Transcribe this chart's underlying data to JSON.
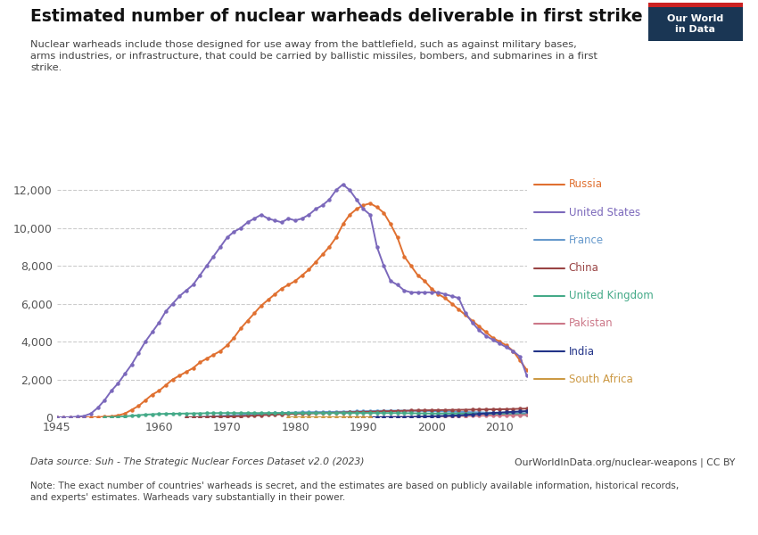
{
  "title": "Estimated number of nuclear warheads deliverable in first strike",
  "subtitle": "Nuclear warheads include those designed for use away from the battlefield, such as against military bases,\narms industries, or infrastructure, that could be carried by ballistic missiles, bombers, and submarines in a first\nstrike.",
  "datasource": "Data source: Suh - The Strategic Nuclear Forces Dataset v2.0 (2023)",
  "url": "OurWorldInData.org/nuclear-weapons | CC BY",
  "note": "Note: The exact number of countries' warheads is secret, and the estimates are based on publicly available information, historical records,\nand experts' estimates. Warheads vary substantially in their power.",
  "background_color": "#ffffff",
  "plot_bg_color": "#ffffff",
  "grid_color": "#cccccc",
  "series": {
    "Russia": {
      "color": "#e07030",
      "data": {
        "1945": 0,
        "1946": 0,
        "1947": 0,
        "1948": 0,
        "1949": 0,
        "1950": 5,
        "1951": 10,
        "1952": 30,
        "1953": 50,
        "1954": 100,
        "1955": 200,
        "1956": 400,
        "1957": 600,
        "1958": 900,
        "1959": 1200,
        "1960": 1400,
        "1961": 1700,
        "1962": 2000,
        "1963": 2200,
        "1964": 2400,
        "1965": 2600,
        "1966": 2900,
        "1967": 3100,
        "1968": 3300,
        "1969": 3500,
        "1970": 3800,
        "1971": 4200,
        "1972": 4700,
        "1973": 5100,
        "1974": 5500,
        "1975": 5900,
        "1976": 6200,
        "1977": 6500,
        "1978": 6800,
        "1979": 7000,
        "1980": 7200,
        "1981": 7500,
        "1982": 7800,
        "1983": 8200,
        "1984": 8600,
        "1985": 9000,
        "1986": 9500,
        "1987": 10200,
        "1988": 10700,
        "1989": 11000,
        "1990": 11200,
        "1991": 11300,
        "1992": 11100,
        "1993": 10800,
        "1994": 10200,
        "1995": 9500,
        "1996": 8500,
        "1997": 8000,
        "1998": 7500,
        "1999": 7200,
        "2000": 6800,
        "2001": 6500,
        "2002": 6300,
        "2003": 6000,
        "2004": 5700,
        "2005": 5400,
        "2006": 5100,
        "2007": 4800,
        "2008": 4500,
        "2009": 4200,
        "2010": 4000,
        "2011": 3800,
        "2012": 3500,
        "2013": 3000,
        "2014": 2500
      }
    },
    "United States": {
      "color": "#7b68bb",
      "data": {
        "1945": 0,
        "1946": 2,
        "1947": 10,
        "1948": 30,
        "1949": 70,
        "1950": 200,
        "1951": 500,
        "1952": 900,
        "1953": 1400,
        "1954": 1800,
        "1955": 2300,
        "1956": 2800,
        "1957": 3400,
        "1958": 4000,
        "1959": 4500,
        "1960": 5000,
        "1961": 5600,
        "1962": 6000,
        "1963": 6400,
        "1964": 6700,
        "1965": 7000,
        "1966": 7500,
        "1967": 8000,
        "1968": 8500,
        "1969": 9000,
        "1970": 9500,
        "1971": 9800,
        "1972": 10000,
        "1973": 10300,
        "1974": 10500,
        "1975": 10700,
        "1976": 10500,
        "1977": 10400,
        "1978": 10300,
        "1979": 10500,
        "1980": 10400,
        "1981": 10500,
        "1982": 10700,
        "1983": 11000,
        "1984": 11200,
        "1985": 11500,
        "1986": 12000,
        "1987": 12300,
        "1988": 12000,
        "1989": 11500,
        "1990": 11000,
        "1991": 10700,
        "1992": 9000,
        "1993": 8000,
        "1994": 7200,
        "1995": 7000,
        "1996": 6700,
        "1997": 6600,
        "1998": 6600,
        "1999": 6600,
        "2000": 6600,
        "2001": 6600,
        "2002": 6500,
        "2003": 6400,
        "2004": 6300,
        "2005": 5500,
        "2006": 5000,
        "2007": 4600,
        "2008": 4300,
        "2009": 4100,
        "2010": 3900,
        "2011": 3700,
        "2012": 3500,
        "2013": 3200,
        "2014": 2200
      }
    },
    "France": {
      "color": "#6699cc",
      "data": {
        "1964": 0,
        "1965": 5,
        "1966": 15,
        "1967": 30,
        "1968": 50,
        "1969": 70,
        "1970": 90,
        "1971": 110,
        "1972": 130,
        "1973": 150,
        "1974": 170,
        "1975": 185,
        "1976": 200,
        "1977": 215,
        "1978": 230,
        "1979": 245,
        "1980": 255,
        "1981": 265,
        "1982": 270,
        "1983": 275,
        "1984": 280,
        "1985": 285,
        "1986": 290,
        "1987": 295,
        "1988": 300,
        "1989": 310,
        "1990": 320,
        "1991": 330,
        "1992": 340,
        "1993": 345,
        "1994": 350,
        "1995": 350,
        "1996": 350,
        "1997": 345,
        "1998": 340,
        "1999": 335,
        "2000": 330,
        "2001": 320,
        "2002": 310,
        "2003": 300,
        "2004": 290,
        "2005": 280,
        "2006": 270,
        "2007": 260,
        "2008": 250,
        "2009": 245,
        "2010": 240,
        "2011": 235,
        "2012": 230,
        "2013": 225,
        "2014": 220
      }
    },
    "China": {
      "color": "#994444",
      "data": {
        "1964": 0,
        "1965": 5,
        "1966": 10,
        "1967": 20,
        "1968": 25,
        "1969": 30,
        "1970": 40,
        "1971": 50,
        "1972": 60,
        "1973": 75,
        "1974": 90,
        "1975": 110,
        "1976": 130,
        "1977": 145,
        "1978": 160,
        "1979": 175,
        "1980": 185,
        "1981": 195,
        "1982": 205,
        "1983": 215,
        "1984": 225,
        "1985": 235,
        "1986": 245,
        "1987": 255,
        "1988": 265,
        "1989": 275,
        "1990": 285,
        "1991": 295,
        "1992": 305,
        "1993": 315,
        "1994": 325,
        "1995": 335,
        "1996": 345,
        "1997": 355,
        "1998": 365,
        "1999": 370,
        "2000": 375,
        "2001": 380,
        "2002": 385,
        "2003": 390,
        "2004": 395,
        "2005": 400,
        "2006": 405,
        "2007": 410,
        "2008": 415,
        "2009": 420,
        "2010": 425,
        "2011": 430,
        "2012": 440,
        "2013": 450,
        "2014": 460
      }
    },
    "United Kingdom": {
      "color": "#44aa88",
      "data": {
        "1952": 0,
        "1953": 5,
        "1954": 20,
        "1955": 50,
        "1956": 80,
        "1957": 110,
        "1958": 140,
        "1959": 160,
        "1960": 175,
        "1961": 185,
        "1962": 190,
        "1963": 195,
        "1964": 200,
        "1965": 205,
        "1966": 210,
        "1967": 215,
        "1968": 220,
        "1969": 225,
        "1970": 225,
        "1971": 225,
        "1972": 225,
        "1973": 225,
        "1974": 225,
        "1975": 225,
        "1976": 225,
        "1977": 225,
        "1978": 225,
        "1979": 225,
        "1980": 225,
        "1981": 225,
        "1982": 225,
        "1983": 225,
        "1984": 225,
        "1985": 225,
        "1986": 225,
        "1987": 225,
        "1988": 225,
        "1989": 225,
        "1990": 225,
        "1991": 225,
        "1992": 225,
        "1993": 225,
        "1994": 225,
        "1995": 225,
        "1996": 220,
        "1997": 215,
        "1998": 210,
        "1999": 205,
        "2000": 200,
        "2001": 200,
        "2002": 200,
        "2003": 200,
        "2004": 200,
        "2005": 195,
        "2006": 190,
        "2007": 185,
        "2008": 180,
        "2009": 175,
        "2010": 170,
        "2011": 165,
        "2012": 160,
        "2013": 160,
        "2014": 160
      }
    },
    "Pakistan": {
      "color": "#cc7788",
      "data": {
        "1987": 0,
        "1988": 0,
        "1989": 0,
        "1990": 5,
        "1991": 8,
        "1992": 10,
        "1993": 12,
        "1994": 15,
        "1995": 18,
        "1996": 20,
        "1997": 22,
        "1998": 25,
        "1999": 30,
        "2000": 40,
        "2001": 48,
        "2002": 55,
        "2003": 60,
        "2004": 65,
        "2005": 70,
        "2006": 75,
        "2007": 80,
        "2008": 90,
        "2009": 95,
        "2010": 100,
        "2011": 105,
        "2012": 110,
        "2013": 115,
        "2014": 120
      }
    },
    "India": {
      "color": "#223388",
      "data": {
        "1988": 0,
        "1989": 0,
        "1990": 0,
        "1991": 0,
        "1992": 5,
        "1993": 8,
        "1994": 10,
        "1995": 12,
        "1996": 15,
        "1997": 20,
        "1998": 30,
        "1999": 40,
        "2000": 55,
        "2001": 65,
        "2002": 75,
        "2003": 90,
        "2004": 100,
        "2005": 120,
        "2006": 150,
        "2007": 180,
        "2008": 200,
        "2009": 230,
        "2010": 250,
        "2011": 270,
        "2012": 290,
        "2013": 310,
        "2014": 330
      }
    },
    "South Africa": {
      "color": "#cc9944",
      "data": {
        "1979": 0,
        "1980": 2,
        "1981": 3,
        "1982": 4,
        "1983": 5,
        "1984": 5,
        "1985": 6,
        "1986": 6,
        "1987": 7,
        "1988": 7,
        "1989": 7,
        "1990": 6,
        "1991": 0
      }
    }
  },
  "xlim": [
    1945,
    2014
  ],
  "ylim": [
    0,
    13000
  ],
  "yticks": [
    0,
    2000,
    4000,
    6000,
    8000,
    10000,
    12000
  ],
  "xticks": [
    1945,
    1960,
    1970,
    1980,
    1990,
    2000,
    2010
  ],
  "owid_box_color": "#1a3654",
  "owid_red": "#cc2222",
  "owid_text": "Our World\nin Data"
}
